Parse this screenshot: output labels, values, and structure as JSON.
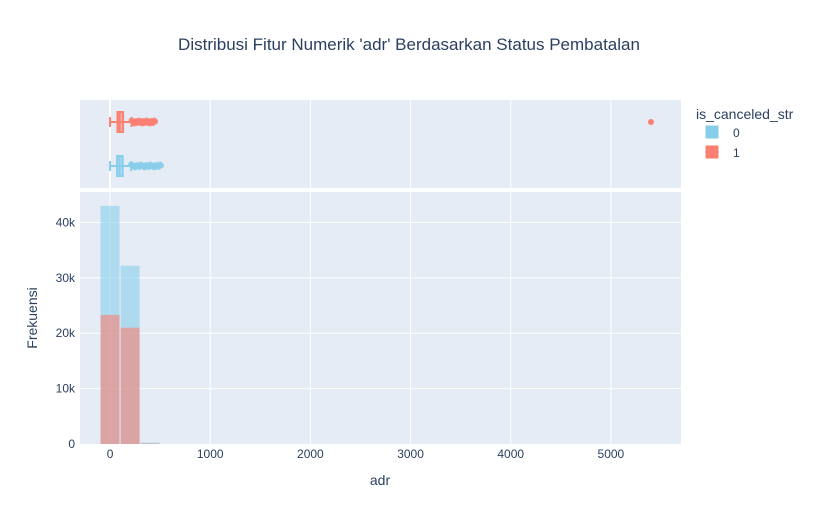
{
  "chart_data": {
    "type": "histogram",
    "title": "Distribusi Fitur Numerik 'adr' Berdasarkan Status Pembatalan",
    "xlabel": "adr",
    "ylabel": "Frekuensi",
    "xlim": [
      -300,
      5700
    ],
    "ylim": [
      0,
      45500
    ],
    "x_ticks": [
      {
        "value": 0,
        "label": "0"
      },
      {
        "value": 1000,
        "label": "1000"
      },
      {
        "value": 2000,
        "label": "2000"
      },
      {
        "value": 3000,
        "label": "3000"
      },
      {
        "value": 4000,
        "label": "4000"
      },
      {
        "value": 5000,
        "label": "5000"
      }
    ],
    "y_ticks": [
      {
        "value": 0,
        "label": "0"
      },
      {
        "value": 10000,
        "label": "10k"
      },
      {
        "value": 20000,
        "label": "20k"
      },
      {
        "value": 30000,
        "label": "30k"
      },
      {
        "value": 40000,
        "label": "40k"
      }
    ],
    "bin_width": 200,
    "legend": {
      "title": "is_canceled_str",
      "placement": "top-right",
      "entries": [
        {
          "name": "0",
          "color": "#87ceeb"
        },
        {
          "name": "1",
          "color": "#fa8072"
        }
      ]
    },
    "series": [
      {
        "name": "0",
        "color": "#87ceeb",
        "bins": [
          {
            "x0": -100,
            "x1": 100,
            "count": 43000
          },
          {
            "x0": 100,
            "x1": 300,
            "count": 32200
          },
          {
            "x0": 300,
            "x1": 500,
            "count": 250
          }
        ],
        "box": {
          "min": 0,
          "q1": 70,
          "median": 95,
          "q3": 126,
          "upper_fence": 210,
          "outlier_max": 510
        }
      },
      {
        "name": "1",
        "color": "#fa8072",
        "bins": [
          {
            "x0": -100,
            "x1": 100,
            "count": 23300
          },
          {
            "x0": 100,
            "x1": 300,
            "count": 21000
          },
          {
            "x0": 300,
            "x1": 500,
            "count": 100
          }
        ],
        "box": {
          "min": 0,
          "q1": 74,
          "median": 96,
          "q3": 130,
          "upper_fence": 215,
          "outlier_max": 450,
          "far_outlier": 5400
        }
      }
    ]
  }
}
